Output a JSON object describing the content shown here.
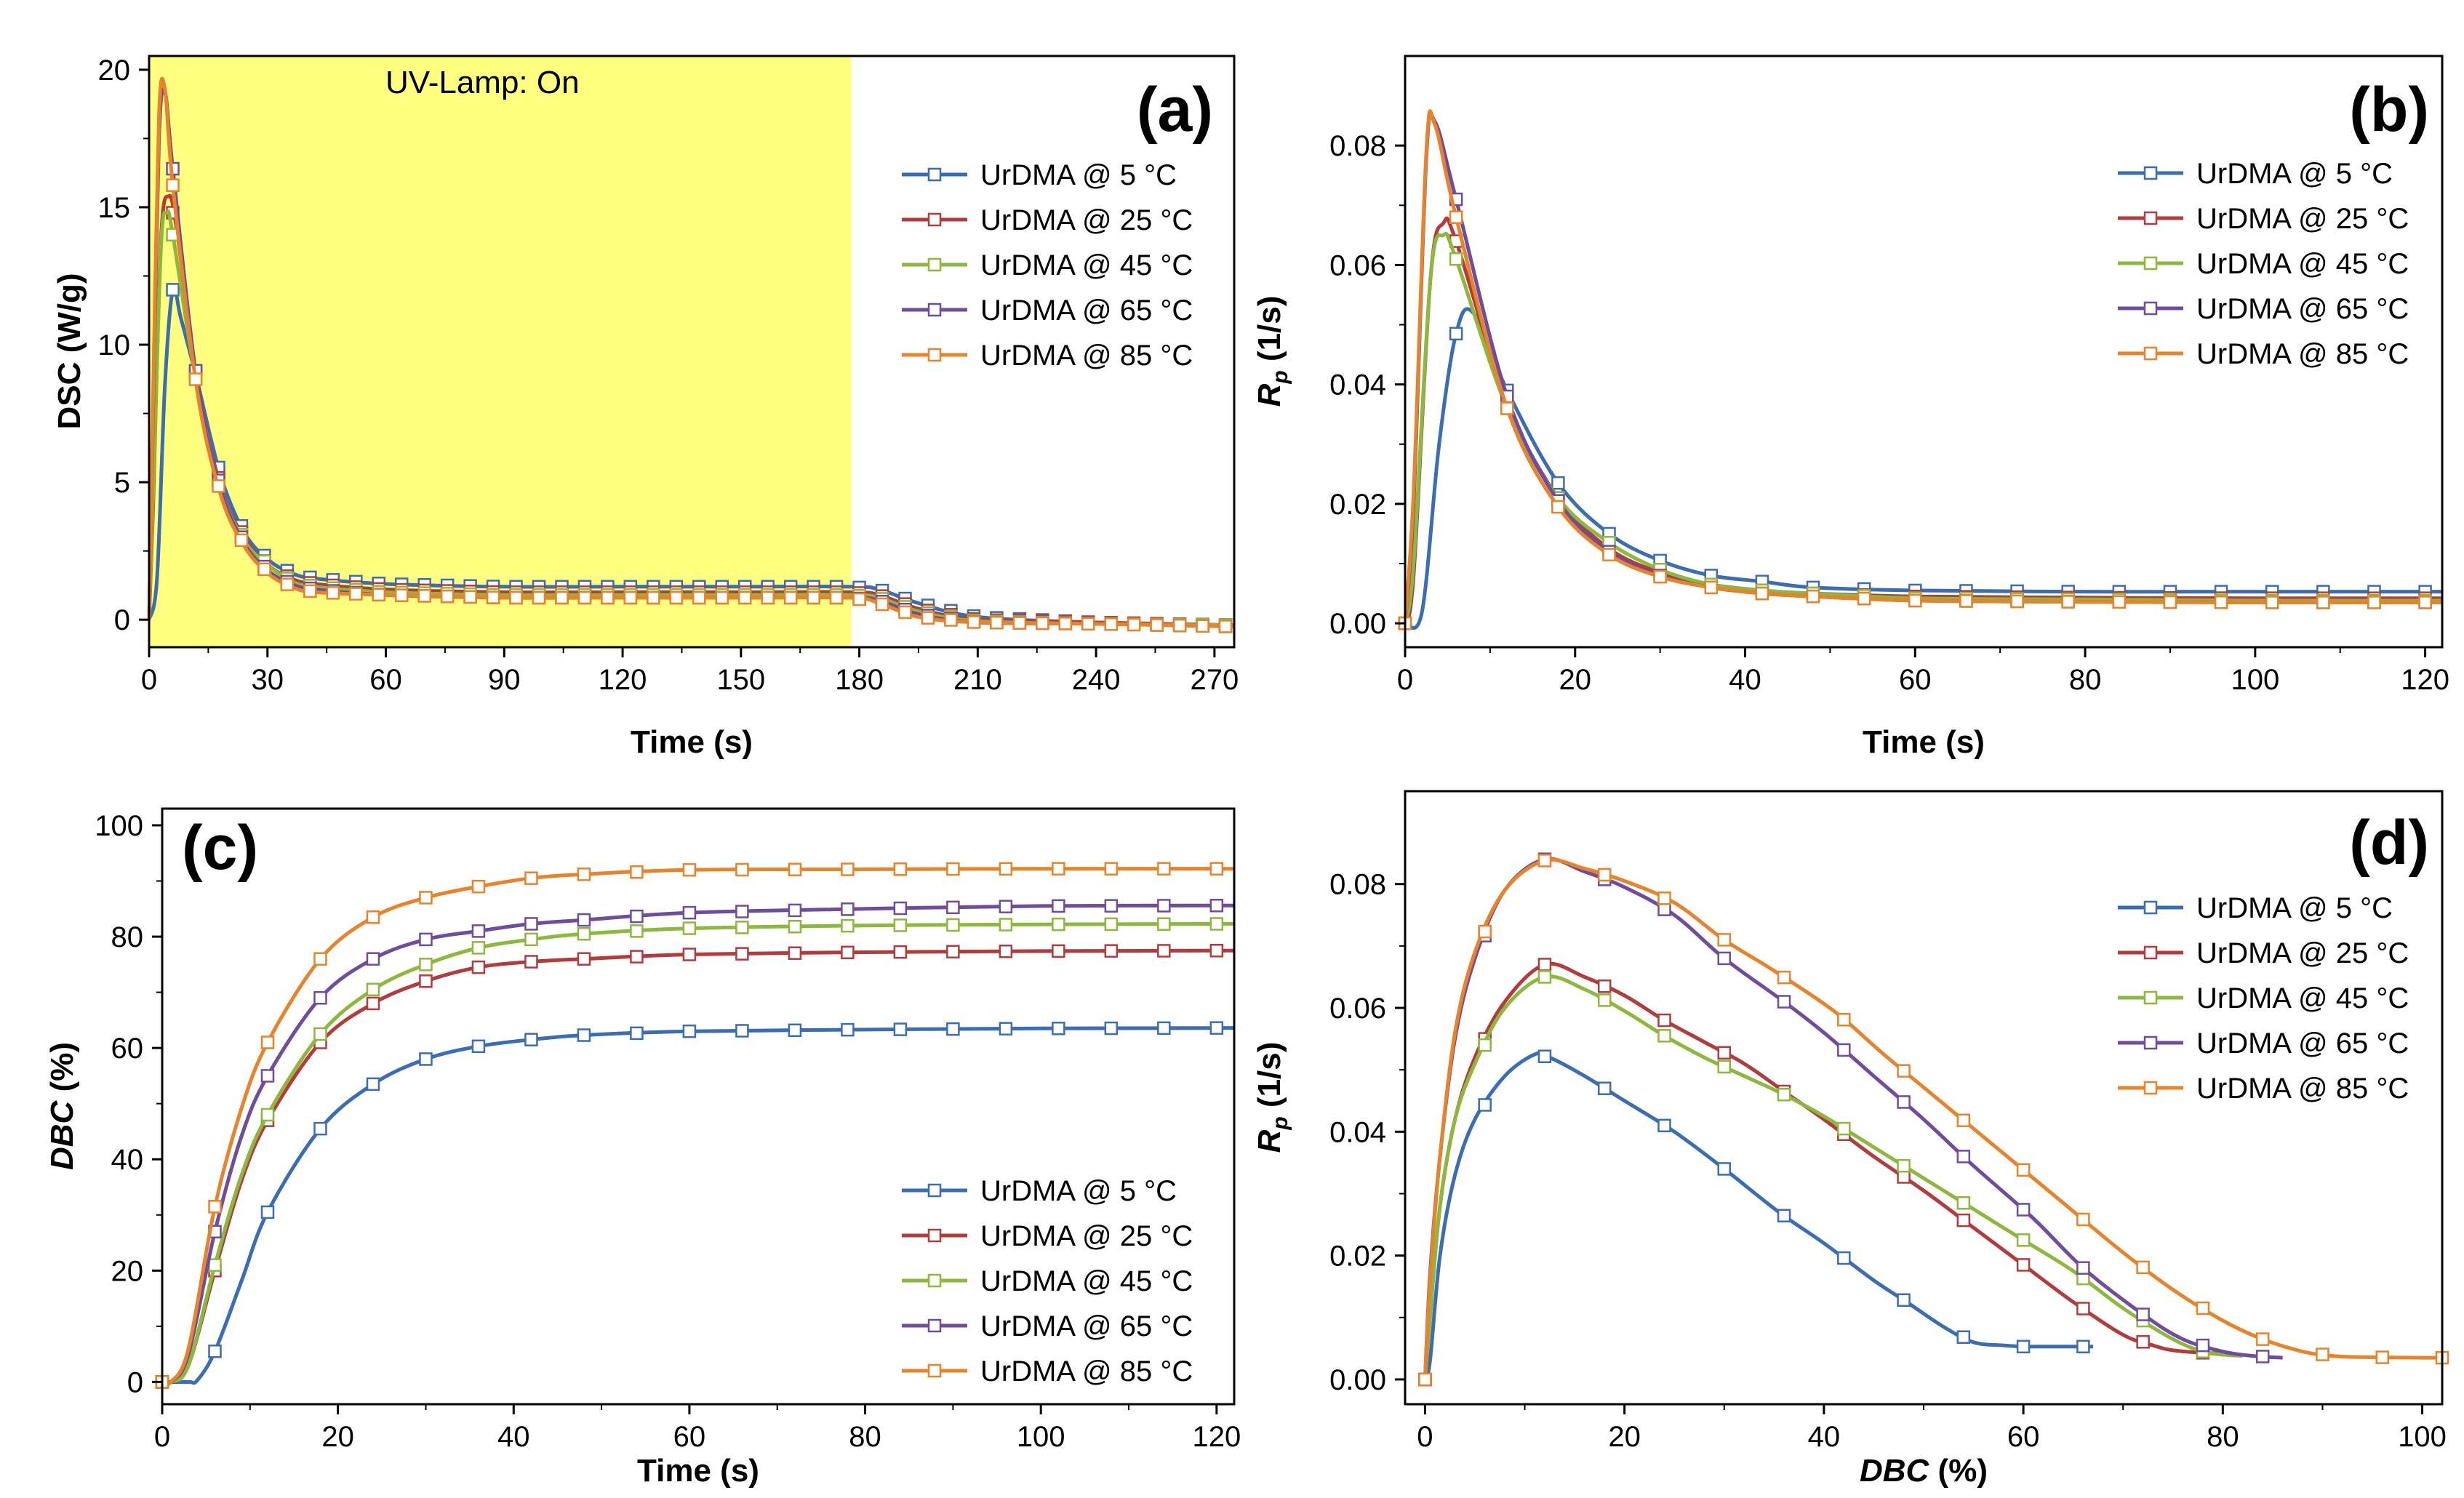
{
  "legend_labels": [
    "UrDMA @ 5 °C",
    "UrDMA @ 25 °C",
    "UrDMA @ 45 °C",
    "UrDMA @ 65 °C",
    "UrDMA @ 85 °C"
  ],
  "series_colors": [
    "#3a6db5",
    "#b33b3b",
    "#8cb83c",
    "#6e4c9e",
    "#e8832a"
  ],
  "chart_data": [
    {
      "panel": "(a)",
      "type": "line",
      "xlabel": "Time (s)",
      "ylabel": "DSC (W/g)",
      "xlim": [
        0,
        275
      ],
      "ylim": [
        -1,
        20.5
      ],
      "xticks": [
        0,
        30,
        60,
        90,
        120,
        150,
        180,
        210,
        240,
        270
      ],
      "yticks": [
        0,
        5,
        10,
        15,
        20
      ],
      "annotation": {
        "text": "UV-Lamp: On",
        "x_range": [
          0,
          178
        ],
        "color": "#ffff80"
      },
      "legend_position": "right",
      "series": [
        {
          "name": "UrDMA @ 5 °C",
          "x": [
            0,
            2,
            4,
            6,
            8,
            12,
            18,
            24,
            30,
            36,
            42,
            60,
            90,
            120,
            150,
            178,
            185,
            195,
            210,
            240,
            275
          ],
          "y": [
            0,
            1.5,
            8.5,
            12.0,
            11.0,
            8.8,
            5.3,
            3.2,
            2.2,
            1.7,
            1.5,
            1.3,
            1.2,
            1.2,
            1.2,
            1.2,
            1.1,
            0.6,
            0.1,
            -0.1,
            -0.2
          ]
        },
        {
          "name": "UrDMA @ 25 °C",
          "x": [
            0,
            1,
            3,
            5,
            7,
            12,
            18,
            24,
            30,
            36,
            42,
            60,
            90,
            120,
            150,
            178,
            185,
            195,
            210,
            240,
            275
          ],
          "y": [
            0,
            4.0,
            13.8,
            15.4,
            14.2,
            8.8,
            4.9,
            3.0,
            2.0,
            1.5,
            1.3,
            1.1,
            1.0,
            1.0,
            1.0,
            1.0,
            0.9,
            0.4,
            0.0,
            -0.1,
            -0.2
          ]
        },
        {
          "name": "UrDMA @ 45 °C",
          "x": [
            0,
            1,
            3,
            4.5,
            6,
            12,
            18,
            24,
            30,
            36,
            42,
            60,
            90,
            120,
            150,
            178,
            185,
            195,
            210,
            240,
            275
          ],
          "y": [
            0,
            4.5,
            13.5,
            14.8,
            14.0,
            8.6,
            4.8,
            2.9,
            2.0,
            1.4,
            1.2,
            1.0,
            0.9,
            0.9,
            0.9,
            0.9,
            0.8,
            0.3,
            -0.05,
            -0.15,
            -0.2
          ]
        },
        {
          "name": "UrDMA @ 65 °C",
          "x": [
            0,
            1,
            2.5,
            4,
            6,
            12,
            18,
            24,
            30,
            36,
            42,
            60,
            90,
            120,
            150,
            178,
            185,
            195,
            210,
            240,
            275
          ],
          "y": [
            0,
            7.5,
            17.5,
            19.2,
            16.4,
            8.8,
            4.8,
            2.8,
            1.8,
            1.3,
            1.1,
            0.9,
            0.8,
            0.8,
            0.8,
            0.8,
            0.7,
            0.2,
            -0.1,
            -0.15,
            -0.25
          ]
        },
        {
          "name": "UrDMA @ 85 °C",
          "x": [
            0,
            1,
            2.5,
            4,
            6,
            12,
            18,
            24,
            30,
            36,
            42,
            60,
            90,
            120,
            150,
            178,
            185,
            195,
            210,
            240,
            275
          ],
          "y": [
            0,
            8.0,
            18.3,
            19.3,
            15.8,
            8.5,
            4.6,
            2.7,
            1.7,
            1.2,
            1.0,
            0.9,
            0.8,
            0.8,
            0.8,
            0.8,
            0.6,
            0.1,
            -0.1,
            -0.15,
            -0.25
          ]
        }
      ]
    },
    {
      "panel": "(b)",
      "type": "line",
      "xlabel": "Time (s)",
      "ylabel": "Rp (1/s)",
      "xlim": [
        0,
        122
      ],
      "ylim": [
        -0.004,
        0.095
      ],
      "xticks": [
        0,
        20,
        40,
        60,
        80,
        100,
        120
      ],
      "yticks": [
        0.0,
        0.02,
        0.04,
        0.06,
        0.08
      ],
      "legend_position": "top-right",
      "series": [
        {
          "name": "UrDMA @ 5 °C",
          "x": [
            0,
            2,
            4,
            6,
            8,
            12,
            18,
            24,
            30,
            36,
            42,
            48,
            60,
            80,
            100,
            122
          ],
          "y": [
            0,
            0.002,
            0.03,
            0.0485,
            0.052,
            0.039,
            0.0235,
            0.015,
            0.0105,
            0.008,
            0.007,
            0.006,
            0.0055,
            0.0053,
            0.0053,
            0.0053
          ]
        },
        {
          "name": "UrDMA @ 25 °C",
          "x": [
            0,
            1,
            3,
            4.5,
            6,
            12,
            18,
            24,
            30,
            36,
            42,
            48,
            60,
            80,
            100,
            122
          ],
          "y": [
            0,
            0.008,
            0.058,
            0.067,
            0.064,
            0.037,
            0.021,
            0.0125,
            0.0085,
            0.0065,
            0.0055,
            0.005,
            0.0045,
            0.0043,
            0.0042,
            0.0042
          ]
        },
        {
          "name": "UrDMA @ 45 °C",
          "x": [
            0,
            1,
            3,
            4.5,
            6,
            12,
            18,
            24,
            30,
            36,
            42,
            48,
            60,
            80,
            100,
            122
          ],
          "y": [
            0,
            0.01,
            0.058,
            0.065,
            0.061,
            0.036,
            0.021,
            0.0135,
            0.009,
            0.0065,
            0.0055,
            0.005,
            0.0042,
            0.004,
            0.0038,
            0.0038
          ]
        },
        {
          "name": "UrDMA @ 65 °C",
          "x": [
            0,
            1,
            2.5,
            3.5,
            6,
            12,
            18,
            24,
            30,
            36,
            42,
            48,
            60,
            80,
            100,
            122
          ],
          "y": [
            0,
            0.02,
            0.078,
            0.084,
            0.071,
            0.038,
            0.0205,
            0.012,
            0.008,
            0.006,
            0.005,
            0.0045,
            0.0038,
            0.0036,
            0.0035,
            0.0035
          ]
        },
        {
          "name": "UrDMA @ 85 °C",
          "x": [
            0,
            1,
            2.5,
            3.5,
            6,
            12,
            18,
            24,
            30,
            36,
            42,
            48,
            60,
            80,
            100,
            122
          ],
          "y": [
            0,
            0.022,
            0.079,
            0.0835,
            0.068,
            0.036,
            0.0195,
            0.0115,
            0.0078,
            0.006,
            0.005,
            0.0045,
            0.0038,
            0.0036,
            0.0035,
            0.0035
          ]
        }
      ]
    },
    {
      "panel": "(c)",
      "type": "line",
      "xlabel": "Time (s)",
      "ylabel": "DBC (%)",
      "xlim": [
        0,
        122
      ],
      "ylim": [
        -4,
        103
      ],
      "xticks": [
        0,
        20,
        40,
        60,
        80,
        100,
        120
      ],
      "yticks": [
        0,
        20,
        40,
        60,
        80,
        100
      ],
      "legend_position": "bottom-right",
      "series": [
        {
          "name": "UrDMA @ 5 °C",
          "x": [
            0,
            3,
            4,
            6,
            9,
            12,
            18,
            24,
            30,
            36,
            42,
            48,
            60,
            80,
            100,
            122
          ],
          "y": [
            0,
            0,
            0.3,
            5.5,
            18,
            30.5,
            45.5,
            53.5,
            58,
            60.3,
            61.5,
            62.3,
            63,
            63.3,
            63.5,
            63.6
          ]
        },
        {
          "name": "UrDMA @ 25 °C",
          "x": [
            0,
            1,
            3,
            6,
            9,
            12,
            18,
            24,
            30,
            36,
            42,
            48,
            60,
            80,
            100,
            122
          ],
          "y": [
            0,
            0,
            3,
            20,
            36,
            47,
            61,
            68,
            72,
            74.5,
            75.5,
            76,
            76.8,
            77.2,
            77.4,
            77.5
          ]
        },
        {
          "name": "UrDMA @ 45 °C",
          "x": [
            0,
            1,
            3,
            6,
            9,
            12,
            18,
            24,
            30,
            36,
            42,
            48,
            60,
            80,
            100,
            122
          ],
          "y": [
            0,
            0,
            3,
            21,
            37,
            48,
            62.5,
            70.5,
            75,
            78,
            79.5,
            80.5,
            81.5,
            82,
            82.2,
            82.3
          ]
        },
        {
          "name": "UrDMA @ 65 °C",
          "x": [
            0,
            1,
            3,
            6,
            9,
            12,
            18,
            24,
            30,
            36,
            42,
            48,
            60,
            80,
            100,
            122
          ],
          "y": [
            0,
            0,
            5,
            27,
            44,
            55,
            69,
            76,
            79.5,
            81,
            82.3,
            83,
            84.3,
            85,
            85.5,
            85.6
          ]
        },
        {
          "name": "UrDMA @ 85 °C",
          "x": [
            0,
            1,
            3,
            6,
            9,
            12,
            18,
            24,
            30,
            36,
            42,
            48,
            60,
            80,
            100,
            122
          ],
          "y": [
            0,
            0,
            6,
            31.5,
            49,
            61,
            76,
            83.5,
            87,
            89,
            90.5,
            91.2,
            92,
            92.1,
            92.2,
            92.2
          ]
        }
      ]
    },
    {
      "panel": "(d)",
      "type": "line",
      "xlabel": "DBC (%)",
      "ylabel": "Rp (1/s)",
      "xlim": [
        -2,
        102
      ],
      "ylim": [
        -0.004,
        0.095
      ],
      "xticks": [
        0,
        20,
        40,
        60,
        80,
        100
      ],
      "yticks": [
        0.0,
        0.02,
        0.04,
        0.06,
        0.08
      ],
      "legend_position": "top-right",
      "series": [
        {
          "name": "UrDMA @ 5 °C",
          "x": [
            0,
            0.5,
            1.5,
            3,
            5,
            8,
            11,
            12.5,
            16,
            20,
            25,
            30,
            35.5,
            40,
            45,
            48.3,
            52,
            55,
            58,
            60,
            61,
            63,
            67
          ],
          "y": [
            0,
            0.003,
            0.02,
            0.033,
            0.042,
            0.049,
            0.0525,
            0.052,
            0.049,
            0.045,
            0.04,
            0.034,
            0.027,
            0.022,
            0.016,
            0.0125,
            0.0085,
            0.006,
            0.0055,
            0.0053,
            0.0053,
            0.0053,
            0.0053
          ]
        },
        {
          "name": "UrDMA @ 25 °C",
          "x": [
            0,
            0.5,
            1.5,
            3,
            5,
            8,
            12,
            16,
            20,
            24,
            28,
            32,
            36,
            40,
            45,
            50,
            55,
            60,
            65,
            70,
            73,
            75,
            78,
            80
          ],
          "y": [
            0,
            0.01,
            0.028,
            0.042,
            0.052,
            0.061,
            0.067,
            0.065,
            0.062,
            0.058,
            0.0545,
            0.051,
            0.0465,
            0.042,
            0.036,
            0.0305,
            0.0245,
            0.0185,
            0.0125,
            0.0072,
            0.0055,
            0.0047,
            0.0043,
            0.0042
          ]
        },
        {
          "name": "UrDMA @ 45 °C",
          "x": [
            0,
            0.5,
            1.5,
            3,
            5,
            8,
            12,
            16,
            20,
            24,
            28,
            32,
            36,
            40,
            45,
            50,
            55,
            60,
            65,
            70,
            75,
            78,
            80,
            82
          ],
          "y": [
            0,
            0.01,
            0.028,
            0.042,
            0.051,
            0.06,
            0.065,
            0.063,
            0.0595,
            0.0555,
            0.052,
            0.049,
            0.046,
            0.0425,
            0.0375,
            0.0325,
            0.0275,
            0.0225,
            0.0175,
            0.0115,
            0.0065,
            0.0045,
            0.004,
            0.0038
          ]
        },
        {
          "name": "UrDMA @ 65 °C",
          "x": [
            0,
            0.5,
            1.5,
            3,
            5,
            8,
            12,
            16,
            20,
            25,
            30,
            36,
            40,
            45,
            50,
            55,
            61,
            66,
            72,
            76,
            80,
            83,
            86
          ],
          "y": [
            0,
            0.017,
            0.036,
            0.055,
            0.068,
            0.079,
            0.084,
            0.082,
            0.0795,
            0.075,
            0.068,
            0.061,
            0.056,
            0.049,
            0.042,
            0.0345,
            0.026,
            0.018,
            0.0105,
            0.0065,
            0.0045,
            0.0038,
            0.0035
          ]
        },
        {
          "name": "UrDMA @ 85 °C",
          "x": [
            0,
            0.5,
            1.5,
            3,
            5,
            8,
            12,
            16,
            20,
            25,
            30,
            35,
            41,
            46,
            52,
            58,
            64,
            70,
            75,
            80,
            84,
            88,
            91,
            94,
            100,
            102
          ],
          "y": [
            0,
            0.016,
            0.036,
            0.056,
            0.069,
            0.079,
            0.0838,
            0.0825,
            0.0805,
            0.077,
            0.071,
            0.066,
            0.0595,
            0.0525,
            0.0445,
            0.0365,
            0.0285,
            0.0205,
            0.0145,
            0.0095,
            0.0065,
            0.0045,
            0.0038,
            0.0036,
            0.0035,
            0.0035
          ]
        }
      ]
    }
  ],
  "panels": [
    {
      "label": "(a)",
      "xlabel": "Time (s)",
      "ylabel_main": "DSC (W/g)",
      "ylabel_sub": "",
      "annotation": "UV-Lamp: On"
    },
    {
      "label": "(b)",
      "xlabel": "Time (s)",
      "ylabel_main": "R",
      "ylabel_sub": "p",
      "ylabel_rest": " (1/s)"
    },
    {
      "label": "(c)",
      "xlabel": "Time (s)",
      "ylabel_main": "DBC",
      "ylabel_rest": " (%)"
    },
    {
      "label": "(d)",
      "xlabel_main": "DBC",
      "xlabel_rest": " (%)",
      "ylabel_main": "R",
      "ylabel_sub": "p",
      "ylabel_rest": " (1/s)"
    }
  ]
}
